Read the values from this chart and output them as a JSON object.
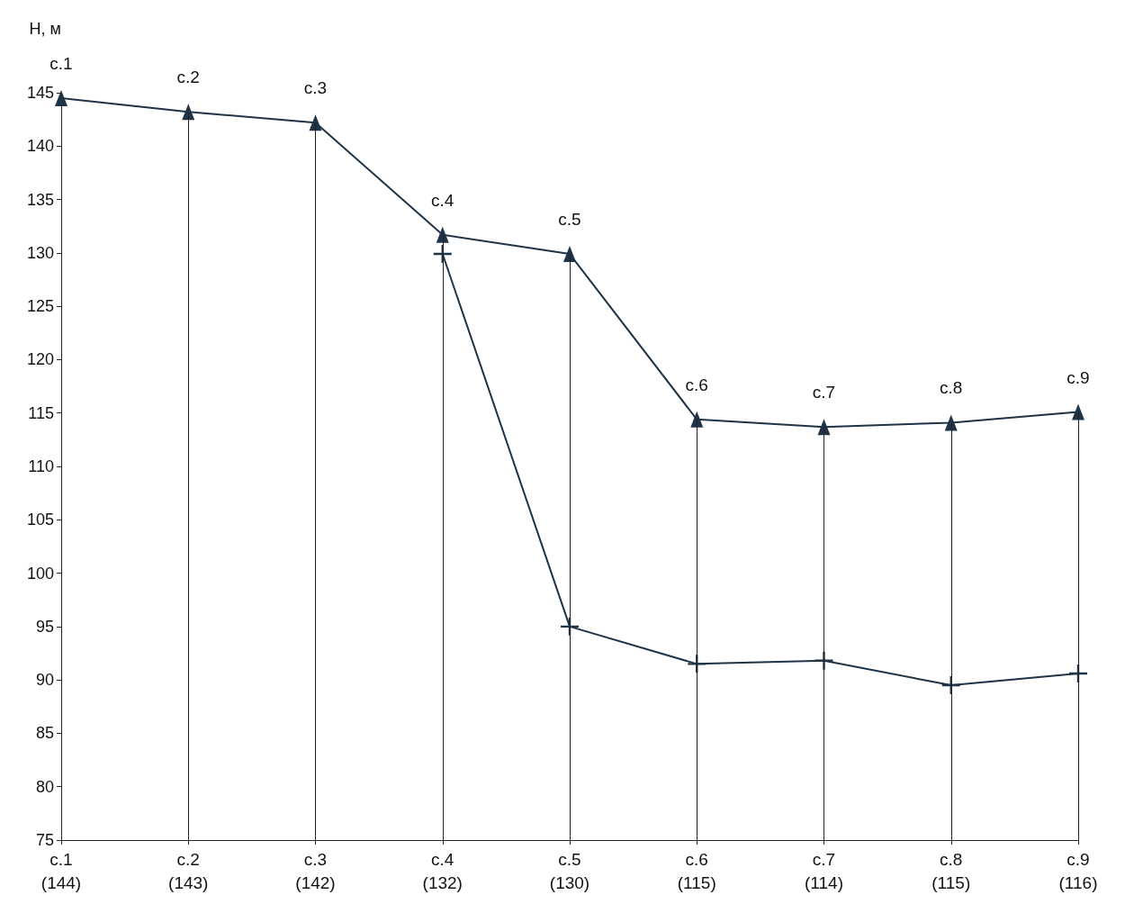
{
  "chart_data": {
    "type": "line",
    "ylabel": "H, м",
    "categories": [
      "с.1\n(144)",
      "с.2\n(143)",
      "с.3\n(142)",
      "с.4\n(132)",
      "с.5\n(130)",
      "с.6\n(115)",
      "с.7\n(114)",
      "с.8\n(115)",
      "с.9\n(116)"
    ],
    "series": [
      {
        "color": "#1f3447",
        "marker": "triangle",
        "values": [
          144.5,
          143.2,
          142.2,
          131.7,
          129.9,
          114.4,
          113.7,
          114.1,
          115.1
        ],
        "value_labels": [
          "с.1",
          "с.2",
          "с.3",
          "с.4",
          "с.5",
          "с.6",
          "с.7",
          "с.8",
          "с.9"
        ]
      },
      {
        "color": "#1f3447",
        "marker": "cross",
        "values": [
          null,
          null,
          null,
          129.9,
          95,
          91.5,
          91.8,
          89.5,
          90.6
        ]
      }
    ],
    "ylim": [
      75,
      145
    ],
    "yticks": [
      75,
      80,
      85,
      90,
      95,
      100,
      105,
      110,
      115,
      120,
      125,
      130,
      135,
      140,
      145
    ],
    "ref_lines": [
      {
        "axis": "x",
        "value": "с.2\n(143)"
      },
      {
        "axis": "x",
        "value": "с.3\n(142)"
      },
      {
        "axis": "x",
        "value": "с.4\n(132)"
      },
      {
        "axis": "x",
        "value": "с.5\n(130)"
      },
      {
        "axis": "x",
        "value": "с.6\n(115)"
      },
      {
        "axis": "x",
        "value": "с.7\n(114)"
      },
      {
        "axis": "x",
        "value": "с.8\n(115)"
      },
      {
        "axis": "x",
        "value": "с.9\n(116)"
      }
    ],
    "grid": false
  }
}
